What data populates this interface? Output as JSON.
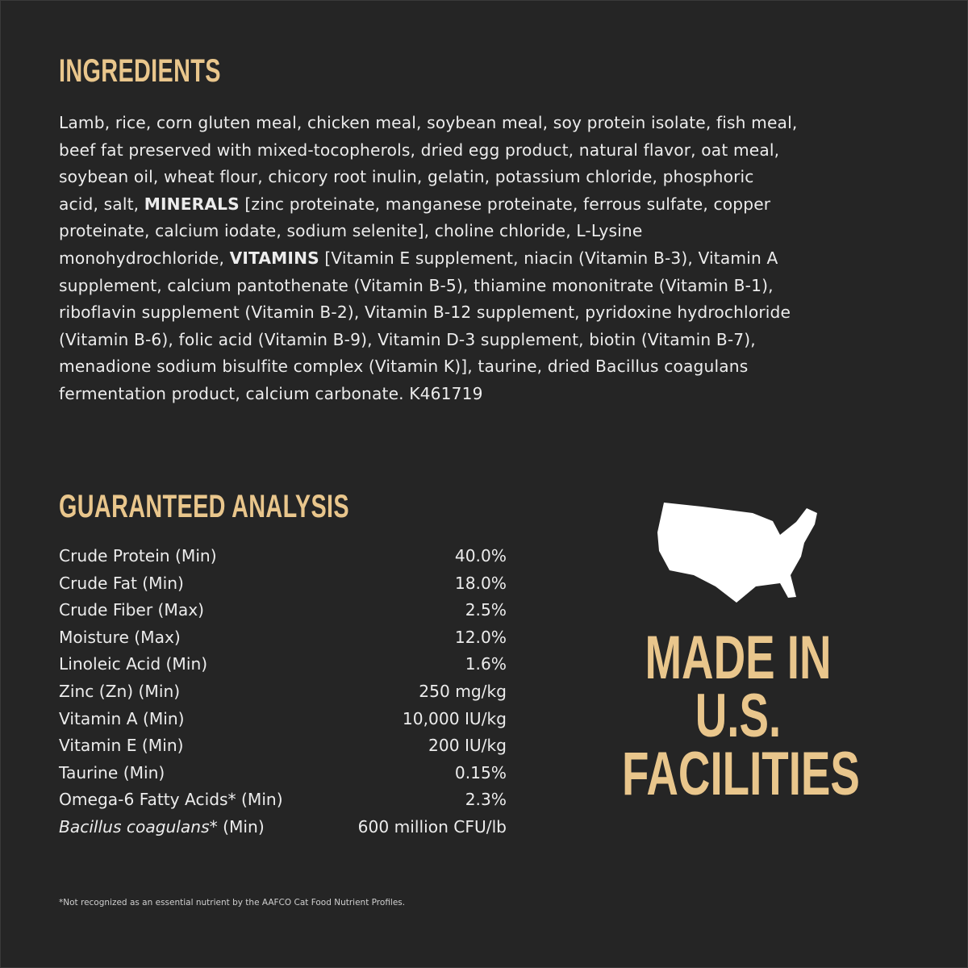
{
  "ingredients": {
    "heading": "INGREDIENTS",
    "lines": [
      [
        "Lamb, rice, corn gluten meal, chicken meal, soybean meal, soy protein isolate, fish meal,"
      ],
      [
        "beef fat preserved with mixed-tocopherols, dried egg product, natural flavor, oat meal,"
      ],
      [
        "soybean oil, wheat flour, chicory root inulin, gelatin, potassium chloride, phosphoric"
      ],
      [
        "acid, salt, ",
        "MINERALS",
        " [zinc proteinate, manganese proteinate, ferrous sulfate, copper"
      ],
      [
        "proteinate, calcium iodate, sodium selenite], choline chloride, L-Lysine"
      ],
      [
        "monohydrochloride, ",
        "VITAMINS",
        " [Vitamin E supplement, niacin (Vitamin B-3), Vitamin A"
      ],
      [
        "supplement, calcium pantothenate (Vitamin B-5), thiamine mononitrate (Vitamin B-1),"
      ],
      [
        "riboflavin supplement (Vitamin B-2), Vitamin B-12 supplement, pyridoxine hydrochloride"
      ],
      [
        "(Vitamin B-6), folic acid (Vitamin B-9), Vitamin D-3 supplement, biotin (Vitamin B-7),"
      ],
      [
        "menadione sodium bisulfite complex (Vitamin K)], taurine, dried Bacillus coagulans"
      ],
      [
        "fermentation product, calcium carbonate. K461719"
      ]
    ]
  },
  "analysis": {
    "heading": "GUARANTEED ANALYSIS",
    "rows": [
      {
        "name": "Crude Protein (Min)",
        "value": "40.0%"
      },
      {
        "name": "Crude Fat (Min)",
        "value": "18.0%"
      },
      {
        "name": "Crude Fiber (Max)",
        "value": "2.5%"
      },
      {
        "name": "Moisture (Max)",
        "value": "12.0%"
      },
      {
        "name": "Linoleic Acid (Min)",
        "value": "1.6%"
      },
      {
        "name": "Zinc (Zn) (Min)",
        "value": "250 mg/kg"
      },
      {
        "name": "Vitamin A (Min)",
        "value": "10,000 IU/kg"
      },
      {
        "name": "Vitamin E (Min)",
        "value": "200 IU/kg"
      },
      {
        "name": "Taurine (Min)",
        "value": "0.15%"
      },
      {
        "name": "Omega-6 Fatty Acids* (Min)",
        "value": "2.3%"
      },
      {
        "name": "Bacillus coagulans",
        "name_suffix": "* (Min)",
        "value": "600 million CFU/lb"
      }
    ]
  },
  "made_in": {
    "icon": "usa-map-icon",
    "lines": [
      "MADE IN",
      "U.S.",
      "FACILITIES"
    ]
  },
  "footnote": "*Not recognized as an essential nutrient by the AAFCO Cat Food Nutrient Profiles.",
  "colors": {
    "background": "#252525",
    "accent": "#e9c68c",
    "text": "#ececec"
  }
}
